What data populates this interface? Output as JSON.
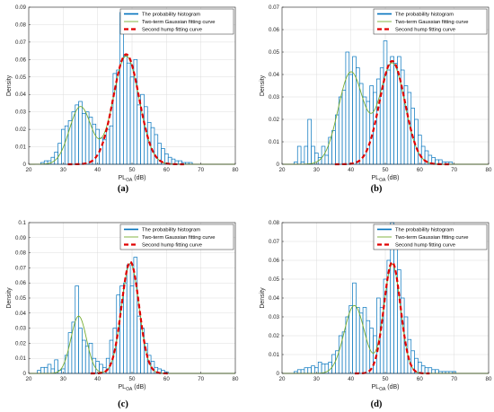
{
  "chart_data": [
    {
      "type": "bar",
      "caption": "(a)",
      "xlabel": "PL",
      "xlabel_sub": "OA",
      "xlabel_unit": "(dB)",
      "ylabel": "Density",
      "xlim": [
        20,
        80
      ],
      "ylim": [
        0,
        0.09
      ],
      "xticks": [
        20,
        30,
        40,
        50,
        60,
        70,
        80
      ],
      "yticks": [
        0,
        0.01,
        0.02,
        0.03,
        0.04,
        0.05,
        0.06,
        0.07,
        0.08,
        0.09
      ],
      "legend_position": "top-right",
      "legend": [
        "The probability histogram",
        "Two-term Gaussian fitting curve",
        "Second hump fitting curve"
      ],
      "grid": true,
      "histogram": {
        "bin_width": 1,
        "x": [
          24,
          25,
          26,
          27,
          28,
          29,
          30,
          31,
          32,
          33,
          34,
          35,
          36,
          37,
          38,
          39,
          40,
          41,
          42,
          43,
          44,
          45,
          46,
          47,
          48,
          49,
          50,
          51,
          52,
          53,
          54,
          55,
          56,
          57,
          58,
          59,
          60,
          61,
          62,
          63,
          64,
          65,
          66,
          67
        ],
        "values": [
          0.001,
          0.002,
          0.002,
          0.004,
          0.007,
          0.012,
          0.02,
          0.022,
          0.025,
          0.03,
          0.034,
          0.036,
          0.029,
          0.03,
          0.027,
          0.023,
          0.02,
          0.015,
          0.014,
          0.02,
          0.022,
          0.052,
          0.054,
          0.087,
          0.062,
          0.058,
          0.05,
          0.06,
          0.034,
          0.04,
          0.033,
          0.024,
          0.021,
          0.017,
          0.012,
          0.009,
          0.006,
          0.004,
          0.003,
          0.002,
          0.002,
          0.001,
          0.001,
          0.001
        ]
      },
      "gaussian_fit": {
        "a1": 0.033,
        "b1": 35,
        "c1": 4.5,
        "a2": 0.062,
        "b2": 48.3,
        "c2": 5.3
      },
      "second_hump": {
        "a": 0.063,
        "b": 48.3,
        "c": 5.3
      }
    },
    {
      "type": "bar",
      "caption": "(b)",
      "xlabel": "PL",
      "xlabel_sub": "OA",
      "xlabel_unit": "(dB)",
      "ylabel": "Density",
      "xlim": [
        20,
        80
      ],
      "ylim": [
        0,
        0.07
      ],
      "xticks": [
        20,
        30,
        40,
        50,
        60,
        70,
        80
      ],
      "yticks": [
        0,
        0.01,
        0.02,
        0.03,
        0.04,
        0.05,
        0.06,
        0.07
      ],
      "legend_position": "top-right",
      "legend": [
        "The probability histogram",
        "Two-term Gaussian fitting curve",
        "Second hump fitting curve"
      ],
      "grid": true,
      "histogram": {
        "bin_width": 1,
        "x": [
          24,
          25,
          26,
          27,
          28,
          29,
          30,
          31,
          32,
          33,
          34,
          35,
          36,
          37,
          38,
          39,
          40,
          41,
          42,
          43,
          44,
          45,
          46,
          47,
          48,
          49,
          50,
          51,
          52,
          53,
          54,
          55,
          56,
          57,
          58,
          59,
          60,
          61,
          62,
          63,
          64,
          65,
          66,
          67,
          68,
          69
        ],
        "values": [
          0.001,
          0.008,
          0.001,
          0.008,
          0.02,
          0.008,
          0.005,
          0.003,
          0.008,
          0.004,
          0.012,
          0.015,
          0.022,
          0.03,
          0.033,
          0.05,
          0.04,
          0.048,
          0.043,
          0.036,
          0.03,
          0.028,
          0.035,
          0.032,
          0.038,
          0.043,
          0.055,
          0.042,
          0.048,
          0.045,
          0.048,
          0.042,
          0.035,
          0.032,
          0.025,
          0.02,
          0.013,
          0.008,
          0.006,
          0.004,
          0.003,
          0.002,
          0.002,
          0.001,
          0.001,
          0.001
        ]
      },
      "gaussian_fit": {
        "a1": 0.041,
        "b1": 40,
        "c1": 5.2,
        "a2": 0.045,
        "b2": 52,
        "c2": 5.2
      },
      "second_hump": {
        "a": 0.046,
        "b": 52,
        "c": 5.2
      }
    },
    {
      "type": "bar",
      "caption": "(c)",
      "xlabel": "PL",
      "xlabel_sub": "OA",
      "xlabel_unit": "(dB)",
      "ylabel": "Density",
      "xlim": [
        20,
        80
      ],
      "ylim": [
        0,
        0.1
      ],
      "xticks": [
        20,
        30,
        40,
        50,
        60,
        70,
        80
      ],
      "yticks": [
        0,
        0.01,
        0.02,
        0.03,
        0.04,
        0.05,
        0.06,
        0.07,
        0.08,
        0.09,
        0.1
      ],
      "legend_position": "top-right",
      "legend": [
        "The probability histogram",
        "Two-term Gaussian fitting curve",
        "Second hump fitting curve"
      ],
      "grid": true,
      "histogram": {
        "bin_width": 1,
        "x": [
          23,
          24,
          25,
          26,
          27,
          28,
          29,
          30,
          31,
          32,
          33,
          34,
          35,
          36,
          37,
          38,
          39,
          40,
          41,
          42,
          43,
          44,
          45,
          46,
          47,
          48,
          49,
          50,
          51,
          52,
          53,
          54,
          55,
          56,
          57,
          58,
          59,
          60
        ],
        "values": [
          0.002,
          0.004,
          0.004,
          0.006,
          0.003,
          0.009,
          0.002,
          0.003,
          0.012,
          0.027,
          0.034,
          0.058,
          0.03,
          0.022,
          0.018,
          0.02,
          0.01,
          0.008,
          0.006,
          0.004,
          0.01,
          0.022,
          0.03,
          0.052,
          0.058,
          0.06,
          0.072,
          0.058,
          0.077,
          0.038,
          0.03,
          0.02,
          0.012,
          0.008,
          0.004,
          0.003,
          0.002,
          0.001
        ]
      },
      "gaussian_fit": {
        "a1": 0.038,
        "b1": 34.5,
        "c1": 3.2,
        "a2": 0.073,
        "b2": 49.5,
        "c2": 3.6
      },
      "second_hump": {
        "a": 0.074,
        "b": 49.5,
        "c": 3.6
      }
    },
    {
      "type": "bar",
      "caption": "(d)",
      "xlabel": "PL",
      "xlabel_sub": "OA",
      "xlabel_unit": "(dB)",
      "ylabel": "Density",
      "xlim": [
        20,
        80
      ],
      "ylim": [
        0,
        0.08
      ],
      "xticks": [
        20,
        30,
        40,
        50,
        60,
        70,
        80
      ],
      "yticks": [
        0,
        0.01,
        0.02,
        0.03,
        0.04,
        0.05,
        0.06,
        0.07,
        0.08
      ],
      "legend_position": "top-right",
      "legend": [
        "The probability histogram",
        "Two-term Gaussian fitting curve",
        "Second hump fitting curve"
      ],
      "grid": true,
      "histogram": {
        "bin_width": 1,
        "x": [
          24,
          25,
          26,
          27,
          28,
          29,
          30,
          31,
          32,
          33,
          34,
          35,
          36,
          37,
          38,
          39,
          40,
          41,
          42,
          43,
          44,
          45,
          46,
          47,
          48,
          49,
          50,
          51,
          52,
          53,
          54,
          55,
          56,
          57,
          58,
          59,
          60,
          61,
          62,
          63,
          64,
          65,
          66,
          67,
          68,
          69,
          70
        ],
        "values": [
          0.001,
          0.002,
          0.002,
          0.003,
          0.003,
          0.004,
          0.003,
          0.006,
          0.005,
          0.005,
          0.006,
          0.01,
          0.012,
          0.02,
          0.022,
          0.03,
          0.036,
          0.048,
          0.035,
          0.032,
          0.035,
          0.028,
          0.024,
          0.02,
          0.04,
          0.035,
          0.05,
          0.06,
          0.08,
          0.066,
          0.055,
          0.04,
          0.03,
          0.018,
          0.012,
          0.008,
          0.006,
          0.004,
          0.003,
          0.003,
          0.002,
          0.002,
          0.001,
          0.001,
          0.001,
          0.001,
          0.001
        ]
      },
      "gaussian_fit": {
        "a1": 0.036,
        "b1": 41,
        "c1": 4.2,
        "a2": 0.058,
        "b2": 52,
        "c2": 3.4
      },
      "second_hump": {
        "a": 0.059,
        "b": 52,
        "c": 3.4
      }
    }
  ]
}
